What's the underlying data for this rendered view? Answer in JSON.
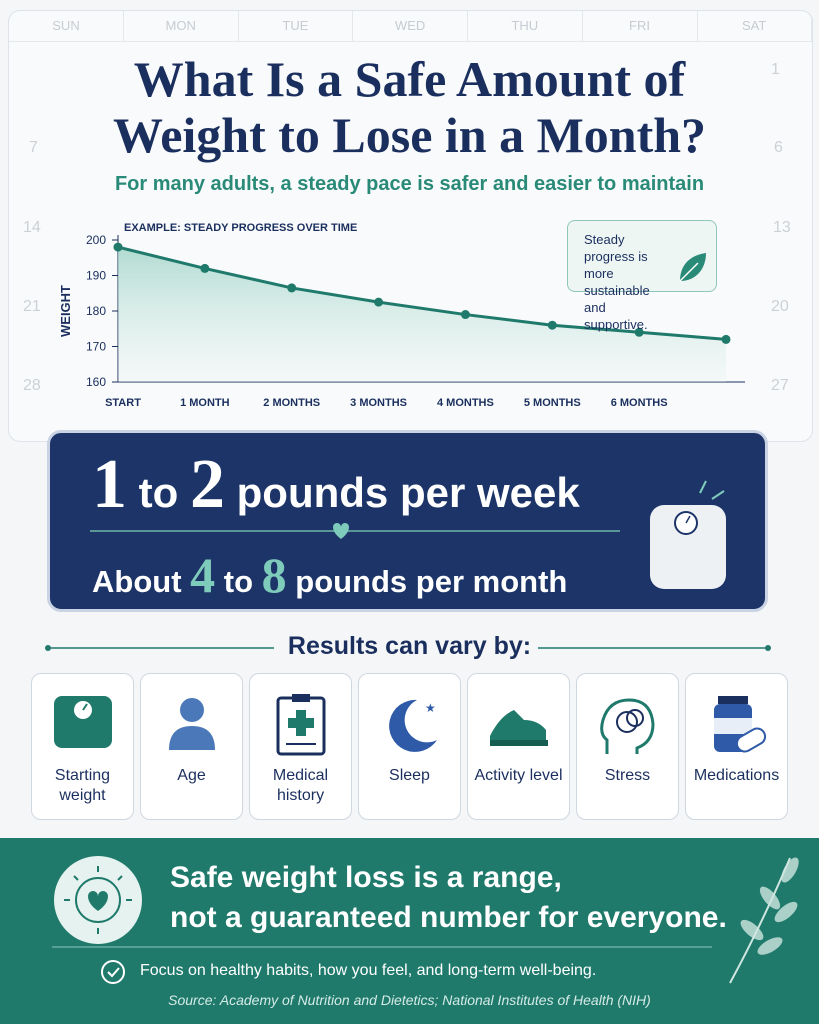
{
  "calendar": {
    "days": [
      "SUN",
      "MON",
      "TUE",
      "WED",
      "THU",
      "FRI",
      "SAT"
    ],
    "dates": [
      "1",
      "7",
      "6",
      "14",
      "13",
      "21",
      "20",
      "28",
      "27"
    ]
  },
  "header": {
    "title_line1": "What Is a Safe Amount of",
    "title_line2": "Weight to Lose in a Month?",
    "subtitle": "For many adults, a steady pace is safer and easier to maintain"
  },
  "chart_data": {
    "type": "line",
    "subtitle": "EXAMPLE: STEADY PROGRESS OVER TIME",
    "y_label": "WEIGHT",
    "annotation": "Steady progress is more sustainable and supportive.",
    "categories": [
      "START",
      "1 MONTH",
      "2 MONTHS",
      "3 MONTHS",
      "4 MONTHS",
      "5 MONTHS",
      "6 MONTHS",
      null
    ],
    "values": [
      198,
      192,
      186.5,
      182.5,
      179,
      176,
      174,
      172
    ],
    "color": "#1f7a6c",
    "ylim": [
      160,
      200
    ],
    "yticks": [
      160,
      170,
      180,
      190,
      200
    ],
    "area": true
  },
  "highlight": {
    "line1": {
      "n1": "1",
      "mid": " to ",
      "n2": "2",
      "rest": " pounds per week"
    },
    "line2": {
      "pre": "About ",
      "n1": "4",
      "mid": " to ",
      "n2": "8",
      "rest": " pounds per month"
    }
  },
  "factors": {
    "heading": "Results can vary by:",
    "items": [
      "Starting weight",
      "Age",
      "Medical history",
      "Sleep",
      "Activity level",
      "Stress",
      "Medications"
    ]
  },
  "footer": {
    "line1": "Safe weight loss is a range,",
    "line2": "not a guaranteed number for everyone.",
    "note": "Focus on healthy habits, how you feel, and long-term well-being.",
    "source": "Source: Academy of Nutrition and Dietetics; National Institutes of Health (NIH)"
  }
}
